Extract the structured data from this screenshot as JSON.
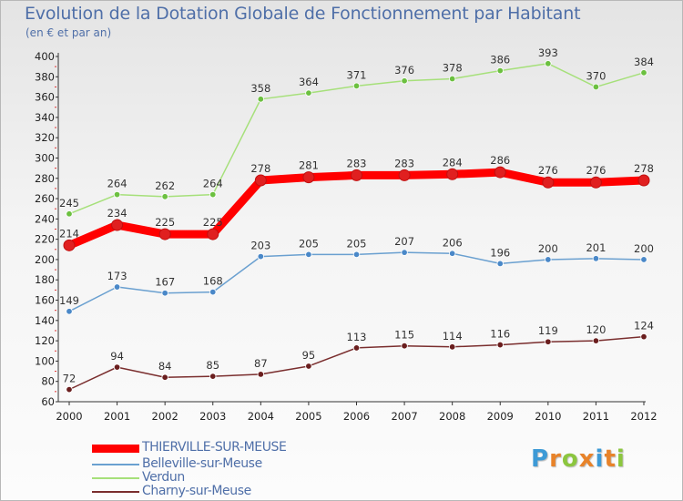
{
  "header": {
    "title": "Evolution de la Dotation Globale de Fonctionnement par Habitant",
    "subtitle": "(en € et par an)"
  },
  "logo": {
    "parts": [
      "P",
      "r",
      "o",
      "x",
      "i",
      "t",
      "i"
    ],
    "colors": [
      "#3d9ad6",
      "#e8832a",
      "#8cc63f",
      "#e8832a",
      "#3d9ad6",
      "#e8832a",
      "#8cc63f"
    ]
  },
  "chart_data": {
    "type": "line",
    "title": "Evolution de la Dotation Globale de Fonctionnement par Habitant",
    "subtitle": "(en € et par an)",
    "xlabel": "",
    "ylabel": "",
    "x": [
      "2000",
      "2001",
      "2002",
      "2003",
      "2004",
      "2005",
      "2006",
      "2007",
      "2008",
      "2009",
      "2010",
      "2011",
      "2012"
    ],
    "ylim": [
      60,
      400
    ],
    "yticks": [
      60,
      80,
      100,
      120,
      140,
      160,
      180,
      200,
      220,
      240,
      260,
      280,
      300,
      320,
      340,
      360,
      380,
      400
    ],
    "grid": false,
    "legend_position": "bottom-left",
    "series": [
      {
        "name": "THIERVILLE-SUR-MEUSE",
        "color": "#ff0000",
        "marker": "#e02020",
        "values": [
          214,
          234,
          225,
          225,
          278,
          281,
          283,
          283,
          284,
          286,
          276,
          276,
          278
        ]
      },
      {
        "name": "Belleville-sur-Meuse",
        "color": "#6aa0d0",
        "marker": "#4a88c8",
        "values": [
          149,
          173,
          167,
          168,
          203,
          205,
          205,
          207,
          206,
          196,
          200,
          201,
          200
        ]
      },
      {
        "name": "Verdun",
        "color": "#a6e07a",
        "marker": "#6cc040",
        "values": [
          245,
          264,
          262,
          264,
          358,
          364,
          371,
          376,
          378,
          386,
          393,
          370,
          384
        ]
      },
      {
        "name": "Charny-sur-Meuse",
        "color": "#7a2e2e",
        "marker": "#6a1e1e",
        "values": [
          72,
          94,
          84,
          85,
          87,
          95,
          113,
          115,
          114,
          116,
          119,
          120,
          124
        ]
      }
    ]
  }
}
